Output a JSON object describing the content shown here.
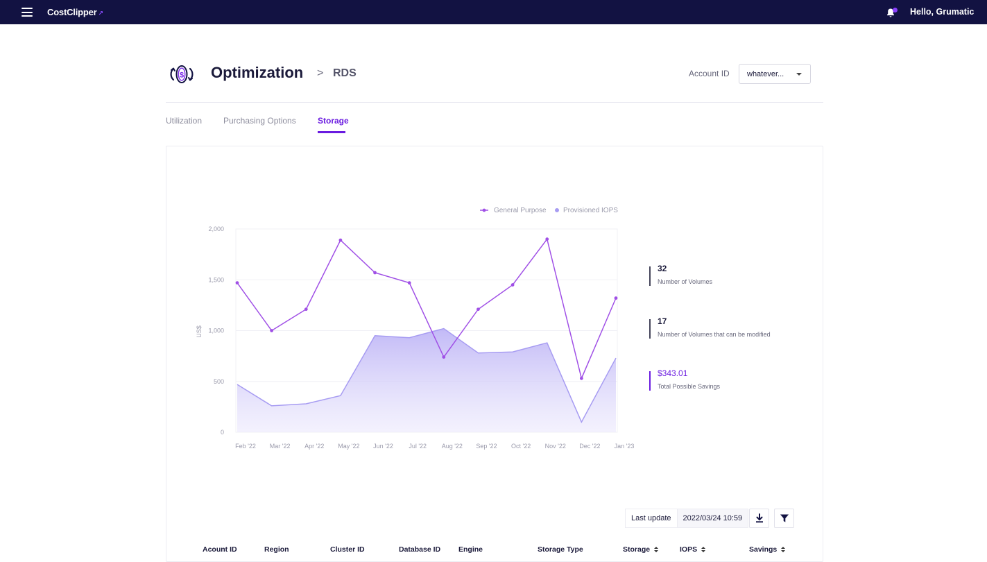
{
  "topbar": {
    "brand": "CostClipper",
    "greeting": "Hello, Grumatic"
  },
  "header": {
    "title": "Optimization",
    "breadcrumb_sep": ">",
    "breadcrumb": "RDS",
    "account_label": "Account ID",
    "account_value": "whatever..."
  },
  "tabs": [
    {
      "label": "Utilization",
      "active": false
    },
    {
      "label": "Purchasing Options",
      "active": false
    },
    {
      "label": "Storage",
      "active": true
    }
  ],
  "chart_data": {
    "type": "line",
    "ylabel": "US$",
    "ylim": [
      0,
      2000
    ],
    "yticks": [
      "0",
      "500",
      "1,000",
      "1,500",
      "2,000"
    ],
    "categories": [
      "Feb '22",
      "Mar '22",
      "Apr '22",
      "May '22",
      "Jun '22",
      "Jul '22",
      "Aug '22",
      "Sep '22",
      "Oct '22",
      "Nov '22",
      "Dec '22",
      "Jan '23"
    ],
    "legend_position": "top-right",
    "series": [
      {
        "name": "General Purpose",
        "style": "line-markers",
        "color": "#a050e6",
        "values": [
          1470,
          1000,
          1210,
          1890,
          1570,
          1470,
          740,
          1210,
          1450,
          1900,
          530,
          1320
        ]
      },
      {
        "name": "Provisioned IOPS",
        "style": "area",
        "color": "#a79cf2",
        "values": [
          470,
          260,
          280,
          360,
          950,
          930,
          1020,
          780,
          790,
          880,
          100,
          730
        ]
      }
    ]
  },
  "stats": [
    {
      "value": "32",
      "label": "Number of Volumes"
    },
    {
      "value": "17",
      "label": "Number of Volumes that can be modified"
    },
    {
      "value": "$343.01",
      "label": "Total Possible Savings"
    }
  ],
  "toolbar": {
    "last_update_label": "Last update",
    "last_update_value": "2022/03/24  10:59",
    "download_icon": "download-icon",
    "filter_icon": "filter-icon"
  },
  "table": {
    "columns": [
      {
        "label": "Acount ID",
        "sortable": false
      },
      {
        "label": "Region",
        "sortable": false
      },
      {
        "label": "Cluster ID",
        "sortable": false
      },
      {
        "label": "Database ID",
        "sortable": false
      },
      {
        "label": "Engine",
        "sortable": false
      },
      {
        "label": "Storage Type",
        "sortable": false
      },
      {
        "label": "Storage",
        "sortable": true
      },
      {
        "label": "IOPS",
        "sortable": true
      },
      {
        "label": "Savings",
        "sortable": true
      }
    ]
  }
}
